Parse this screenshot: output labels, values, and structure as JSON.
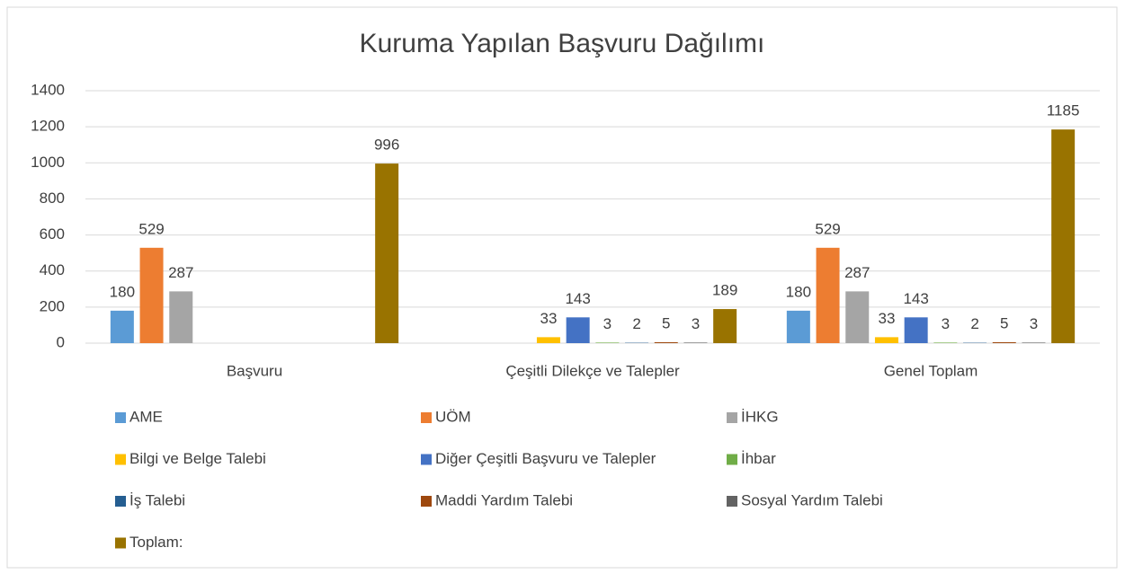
{
  "chart_data": {
    "type": "bar",
    "title": "Kuruma Yapılan Başvuru Dağılımı",
    "categories": [
      "Başvuru",
      "Çeşitli Dilekçe ve Talepler",
      "Genel Toplam"
    ],
    "series": [
      {
        "name": "AME",
        "color": "#5b9bd5",
        "values": [
          180,
          null,
          180
        ]
      },
      {
        "name": "UÖM",
        "color": "#ed7d31",
        "values": [
          529,
          null,
          529
        ]
      },
      {
        "name": "İHKG",
        "color": "#a5a5a5",
        "values": [
          287,
          null,
          287
        ]
      },
      {
        "name": "Bilgi ve Belge Talebi",
        "color": "#ffc000",
        "values": [
          null,
          33,
          33
        ]
      },
      {
        "name": "Diğer Çeşitli Başvuru ve Talepler",
        "color": "#4472c4",
        "values": [
          null,
          143,
          143
        ]
      },
      {
        "name": "İhbar",
        "color": "#70ad47",
        "values": [
          null,
          3,
          3
        ]
      },
      {
        "name": "İş Talebi",
        "color": "#255e91",
        "values": [
          null,
          2,
          2
        ]
      },
      {
        "name": "Maddi Yardım Talebi",
        "color": "#9e480e",
        "values": [
          null,
          5,
          5
        ]
      },
      {
        "name": "Sosyal Yardım Talebi",
        "color": "#636363",
        "values": [
          null,
          3,
          3
        ]
      },
      {
        "name": "Toplam:",
        "color": "#997300",
        "values": [
          996,
          189,
          1185
        ]
      }
    ],
    "ylim": [
      0,
      1400
    ],
    "yticks": [
      0,
      200,
      400,
      600,
      800,
      1000,
      1200,
      1400
    ],
    "grid": true,
    "legend": "bottom"
  }
}
